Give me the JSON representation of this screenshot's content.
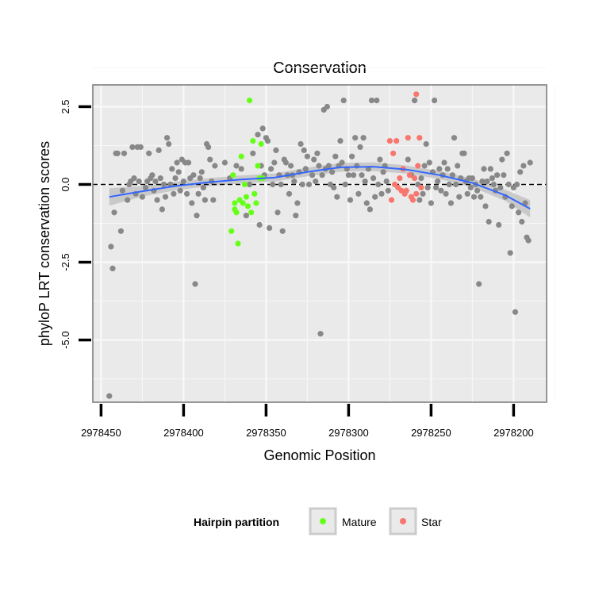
{
  "chart_data": {
    "type": "scatter",
    "title": "Conservation",
    "xlabel": "Genomic Position",
    "ylabel": "phyloP LRT conservation scores",
    "xlim": [
      2978455,
      2978180
    ],
    "ylim": [
      -7.0,
      3.2
    ],
    "x_reversed": true,
    "x_ticks": [
      2978450,
      2978400,
      2978350,
      2978300,
      2978250,
      2978200
    ],
    "x_tick_labels": [
      "2978450",
      "2978400",
      "2978350",
      "2978300",
      "2978250",
      "2978200"
    ],
    "y_ticks": [
      2.5,
      0.0,
      -2.5,
      -5.0
    ],
    "y_tick_labels": [
      "2.5",
      "0.0",
      "-2.5",
      "-5.0"
    ],
    "reference_line": {
      "y": 0,
      "style": "dashed",
      "color": "#000000"
    },
    "legend": {
      "title": "Hairpin partition",
      "position": "bottom",
      "entries": [
        {
          "label": "Mature",
          "color": "#66ff1a"
        },
        {
          "label": "Star",
          "color": "#f8766d"
        }
      ]
    },
    "colors": {
      "background": "#eaeaea",
      "grid": "#f7f7f7",
      "other_points": "#888888",
      "smooth_line": "#3366ff",
      "ribbon": "#bdbdbd"
    },
    "smooth": {
      "x": [
        2978445,
        2978425,
        2978405,
        2978385,
        2978365,
        2978345,
        2978325,
        2978305,
        2978285,
        2978265,
        2978245,
        2978225,
        2978205,
        2978190
      ],
      "y": [
        -0.4,
        -0.22,
        -0.05,
        0.07,
        0.16,
        0.22,
        0.4,
        0.55,
        0.57,
        0.48,
        0.3,
        0.05,
        -0.35,
        -0.78
      ],
      "ci_halfwidth": [
        0.28,
        0.17,
        0.14,
        0.13,
        0.13,
        0.13,
        0.14,
        0.14,
        0.14,
        0.13,
        0.13,
        0.14,
        0.18,
        0.28
      ]
    },
    "series": [
      {
        "name": "Other",
        "color": "#888888",
        "points": [
          [
            2978445,
            -6.8
          ],
          [
            2978444,
            -2.0
          ],
          [
            2978443,
            -2.7
          ],
          [
            2978442,
            -0.9
          ],
          [
            2978441,
            1.0
          ],
          [
            2978440,
            1.0
          ],
          [
            2978438,
            -1.5
          ],
          [
            2978437,
            -0.2
          ],
          [
            2978436,
            1.0
          ],
          [
            2978434,
            -0.5
          ],
          [
            2978433,
            0.0
          ],
          [
            2978432,
            0.1
          ],
          [
            2978431,
            1.2
          ],
          [
            2978430,
            0.2
          ],
          [
            2978429,
            -0.3
          ],
          [
            2978428,
            1.2
          ],
          [
            2978427,
            0.1
          ],
          [
            2978426,
            1.2
          ],
          [
            2978425,
            -0.4
          ],
          [
            2978423,
            -0.1
          ],
          [
            2978422,
            0.1
          ],
          [
            2978421,
            1.0
          ],
          [
            2978420,
            0.2
          ],
          [
            2978419,
            0.3
          ],
          [
            2978418,
            -0.2
          ],
          [
            2978417,
            0.1
          ],
          [
            2978416,
            -0.5
          ],
          [
            2978415,
            1.1
          ],
          [
            2978414,
            0.2
          ],
          [
            2978413,
            -0.8
          ],
          [
            2978412,
            0.0
          ],
          [
            2978411,
            -0.4
          ],
          [
            2978410,
            1.5
          ],
          [
            2978409,
            1.3
          ],
          [
            2978408,
            0.0
          ],
          [
            2978407,
            0.5
          ],
          [
            2978406,
            -0.3
          ],
          [
            2978405,
            0.2
          ],
          [
            2978404,
            0.7
          ],
          [
            2978403,
            0.4
          ],
          [
            2978402,
            -0.2
          ],
          [
            2978401,
            0.8
          ],
          [
            2978400,
            0.1
          ],
          [
            2978399,
            0.7
          ],
          [
            2978398,
            -0.3
          ],
          [
            2978397,
            0.7
          ],
          [
            2978396,
            0.2
          ],
          [
            2978395,
            -0.6
          ],
          [
            2978394,
            0.3
          ],
          [
            2978393,
            -3.2
          ],
          [
            2978392,
            -1.0
          ],
          [
            2978391,
            -0.3
          ],
          [
            2978390,
            0.2
          ],
          [
            2978389,
            0.4
          ],
          [
            2978388,
            -0.1
          ],
          [
            2978387,
            -0.5
          ],
          [
            2978386,
            1.3
          ],
          [
            2978385,
            1.2
          ],
          [
            2978384,
            0.8
          ],
          [
            2978383,
            0.1
          ],
          [
            2978382,
            -0.5
          ],
          [
            2978381,
            0.6
          ],
          [
            2978375,
            0.7
          ],
          [
            2978372,
            0.2
          ],
          [
            2978368,
            0.6
          ],
          [
            2978365,
            0.5
          ],
          [
            2978362,
            -1.0
          ],
          [
            2978360,
            0.0
          ],
          [
            2978358,
            1.0
          ],
          [
            2978355,
            1.6
          ],
          [
            2978354,
            -1.3
          ],
          [
            2978353,
            0.6
          ],
          [
            2978352,
            1.8
          ],
          [
            2978351,
            0.3
          ],
          [
            2978350,
            1.5
          ],
          [
            2978349,
            1.4
          ],
          [
            2978348,
            -1.4
          ],
          [
            2978347,
            0.5
          ],
          [
            2978346,
            0.0
          ],
          [
            2978345,
            0.7
          ],
          [
            2978344,
            1.1
          ],
          [
            2978343,
            -0.9
          ],
          [
            2978342,
            0.3
          ],
          [
            2978341,
            0.0
          ],
          [
            2978340,
            -1.5
          ],
          [
            2978339,
            0.8
          ],
          [
            2978338,
            0.7
          ],
          [
            2978337,
            0.3
          ],
          [
            2978336,
            -0.3
          ],
          [
            2978335,
            0.6
          ],
          [
            2978334,
            0.3
          ],
          [
            2978333,
            0.1
          ],
          [
            2978332,
            -1.0
          ],
          [
            2978331,
            -0.6
          ],
          [
            2978330,
            0.4
          ],
          [
            2978329,
            1.3
          ],
          [
            2978328,
            0.0
          ],
          [
            2978327,
            1.1
          ],
          [
            2978326,
            0.5
          ],
          [
            2978325,
            0.9
          ],
          [
            2978324,
            0.0
          ],
          [
            2978322,
            0.3
          ],
          [
            2978321,
            0.8
          ],
          [
            2978320,
            0.1
          ],
          [
            2978319,
            1.0
          ],
          [
            2978318,
            0.6
          ],
          [
            2978317,
            -4.8
          ],
          [
            2978316,
            0.3
          ],
          [
            2978315,
            2.4
          ],
          [
            2978314,
            0.5
          ],
          [
            2978313,
            2.5
          ],
          [
            2978312,
            0.6
          ],
          [
            2978311,
            0.0
          ],
          [
            2978310,
            0.4
          ],
          [
            2978309,
            -0.1
          ],
          [
            2978308,
            0.9
          ],
          [
            2978307,
            -0.4
          ],
          [
            2978306,
            0.6
          ],
          [
            2978305,
            1.4
          ],
          [
            2978304,
            0.7
          ],
          [
            2978303,
            2.7
          ],
          [
            2978302,
            0.0
          ],
          [
            2978301,
            0.5
          ],
          [
            2978300,
            0.3
          ],
          [
            2978299,
            -0.5
          ],
          [
            2978298,
            0.9
          ],
          [
            2978297,
            0.3
          ],
          [
            2978296,
            1.5
          ],
          [
            2978295,
            0.6
          ],
          [
            2978294,
            -0.3
          ],
          [
            2978293,
            1.2
          ],
          [
            2978292,
            0.3
          ],
          [
            2978291,
            1.5
          ],
          [
            2978290,
            0.1
          ],
          [
            2978289,
            -0.6
          ],
          [
            2978288,
            0.5
          ],
          [
            2978287,
            -0.8
          ],
          [
            2978286,
            2.7
          ],
          [
            2978285,
            0.2
          ],
          [
            2978284,
            -0.4
          ],
          [
            2978283,
            2.7
          ],
          [
            2978282,
            0.0
          ],
          [
            2978281,
            0.8
          ],
          [
            2978280,
            -0.3
          ],
          [
            2978279,
            0.4
          ],
          [
            2978278,
            0.6
          ],
          [
            2978277,
            0.1
          ],
          [
            2978276,
            -0.2
          ],
          [
            2978264,
            0.8
          ],
          [
            2978262,
            0.3
          ],
          [
            2978260,
            2.7
          ],
          [
            2978258,
            0.0
          ],
          [
            2978257,
            -0.5
          ],
          [
            2978256,
            0.2
          ],
          [
            2978255,
            -0.3
          ],
          [
            2978254,
            0.6
          ],
          [
            2978253,
            1.3
          ],
          [
            2978252,
            -0.1
          ],
          [
            2978251,
            0.7
          ],
          [
            2978250,
            -0.6
          ],
          [
            2978249,
            0.4
          ],
          [
            2978248,
            2.7
          ],
          [
            2978247,
            -0.1
          ],
          [
            2978246,
            0.1
          ],
          [
            2978245,
            0.5
          ],
          [
            2978244,
            -0.2
          ],
          [
            2978243,
            0.3
          ],
          [
            2978242,
            0.7
          ],
          [
            2978241,
            -0.3
          ],
          [
            2978240,
            0.5
          ],
          [
            2978239,
            0.0
          ],
          [
            2978238,
            -0.6
          ],
          [
            2978237,
            0.3
          ],
          [
            2978236,
            1.5
          ],
          [
            2978235,
            0.0
          ],
          [
            2978234,
            0.6
          ],
          [
            2978233,
            -0.4
          ],
          [
            2978232,
            0.2
          ],
          [
            2978231,
            1.0
          ],
          [
            2978230,
            1.0
          ],
          [
            2978229,
            0.1
          ],
          [
            2978228,
            -0.3
          ],
          [
            2978227,
            0.2
          ],
          [
            2978226,
            -0.1
          ],
          [
            2978225,
            0.2
          ],
          [
            2978224,
            -0.4
          ],
          [
            2978223,
            0.0
          ],
          [
            2978222,
            -0.2
          ],
          [
            2978221,
            -3.2
          ],
          [
            2978220,
            -0.4
          ],
          [
            2978219,
            0.1
          ],
          [
            2978218,
            0.5
          ],
          [
            2978217,
            -0.7
          ],
          [
            2978216,
            0.1
          ],
          [
            2978215,
            -1.2
          ],
          [
            2978214,
            0.5
          ],
          [
            2978213,
            0.2
          ],
          [
            2978212,
            0.0
          ],
          [
            2978211,
            -0.2
          ],
          [
            2978210,
            0.3
          ],
          [
            2978209,
            -1.3
          ],
          [
            2978208,
            -0.1
          ],
          [
            2978207,
            0.8
          ],
          [
            2978206,
            0.3
          ],
          [
            2978205,
            -0.4
          ],
          [
            2978204,
            1.0
          ],
          [
            2978203,
            0.0
          ],
          [
            2978202,
            -2.2
          ],
          [
            2978201,
            -0.7
          ],
          [
            2978200,
            -0.1
          ],
          [
            2978199,
            -4.1
          ],
          [
            2978198,
            0.0
          ],
          [
            2978197,
            -0.9
          ],
          [
            2978196,
            0.4
          ],
          [
            2978195,
            -1.2
          ],
          [
            2978194,
            0.6
          ],
          [
            2978193,
            -0.6
          ],
          [
            2978192,
            -1.7
          ],
          [
            2978191,
            -1.8
          ],
          [
            2978190,
            0.7
          ]
        ]
      },
      {
        "name": "Mature",
        "color": "#66ff1a",
        "points": [
          [
            2978370,
            0.3
          ],
          [
            2978369,
            -0.8
          ],
          [
            2978368,
            -0.9
          ],
          [
            2978367,
            -1.9
          ],
          [
            2978366,
            -0.5
          ],
          [
            2978365,
            0.9
          ],
          [
            2978364,
            -0.6
          ],
          [
            2978363,
            0.0
          ],
          [
            2978362,
            -0.4
          ],
          [
            2978361,
            -0.7
          ],
          [
            2978360,
            2.7
          ],
          [
            2978359,
            -0.9
          ],
          [
            2978358,
            1.4
          ],
          [
            2978357,
            -0.3
          ],
          [
            2978356,
            -0.6
          ],
          [
            2978355,
            0.6
          ],
          [
            2978354,
            0.2
          ],
          [
            2978353,
            1.3
          ],
          [
            2978352,
            0.2
          ],
          [
            2978371,
            -1.5
          ],
          [
            2978369,
            -0.6
          ]
        ]
      },
      {
        "name": "Star",
        "color": "#f8766d",
        "points": [
          [
            2978275,
            1.4
          ],
          [
            2978274,
            -0.5
          ],
          [
            2978273,
            1.0
          ],
          [
            2978272,
            0.0
          ],
          [
            2978271,
            1.4
          ],
          [
            2978270,
            -0.1
          ],
          [
            2978269,
            0.2
          ],
          [
            2978268,
            -0.2
          ],
          [
            2978267,
            0.5
          ],
          [
            2978266,
            -0.3
          ],
          [
            2978265,
            -0.2
          ],
          [
            2978264,
            1.5
          ],
          [
            2978263,
            0.3
          ],
          [
            2978262,
            -0.4
          ],
          [
            2978261,
            -0.5
          ],
          [
            2978260,
            0.2
          ],
          [
            2978259,
            2.9
          ],
          [
            2978258,
            0.6
          ],
          [
            2978257,
            1.5
          ],
          [
            2978256,
            -0.1
          ],
          [
            2978259,
            -0.3
          ]
        ]
      }
    ]
  }
}
